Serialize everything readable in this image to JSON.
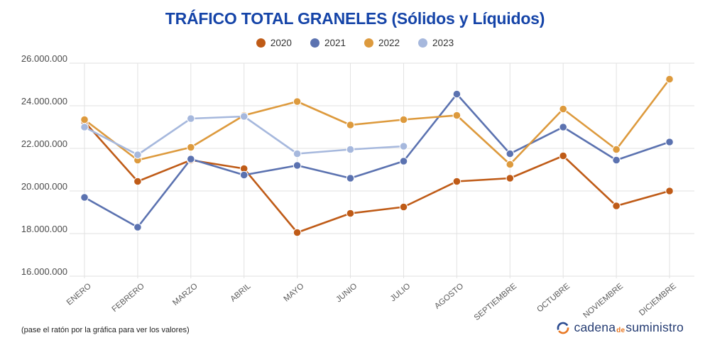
{
  "title": "TRÁFICO TOTAL GRANELES (Sólidos y Líquidos)",
  "footer": {
    "hint": "(pase el ratón por la gráfica para ver los valores)",
    "brand": {
      "cadena": "cadena",
      "de": "de",
      "suministro": "suministro"
    }
  },
  "colors": {
    "title": "#1544a8",
    "grid": "#e2e2e2",
    "axis_text": "#5c5c5c",
    "brand_navy": "#243b72",
    "brand_orange": "#e87722"
  },
  "chart_data": {
    "type": "line",
    "title": "TRÁFICO TOTAL GRANELES (Sólidos y Líquidos)",
    "xlabel": "",
    "ylabel": "",
    "grid": true,
    "legend_position": "top",
    "marker": "circle",
    "ylim": [
      16000000,
      26000000
    ],
    "yticks": [
      16000000,
      18000000,
      20000000,
      22000000,
      24000000,
      26000000
    ],
    "ytick_labels": [
      "16.000.000",
      "18.000.000",
      "20.000.000",
      "22.000.000",
      "24.000.000",
      "26.000.000"
    ],
    "categories": [
      "ENERO",
      "FEBRERO",
      "MARZO",
      "ABRIL",
      "MAYO",
      "JUNIO",
      "JULIO",
      "AGOSTO",
      "SEPTIEMBRE",
      "OCTUBRE",
      "NOVIEMBRE",
      "DICIEMBRE"
    ],
    "series": [
      {
        "name": "2020",
        "color": "#bf5b17",
        "values": [
          23250000,
          20450000,
          21450000,
          21050000,
          18050000,
          18950000,
          19250000,
          20450000,
          20600000,
          21650000,
          19300000,
          20000000
        ]
      },
      {
        "name": "2021",
        "color": "#5b72b0",
        "values": [
          19700000,
          18300000,
          21500000,
          20750000,
          21200000,
          20600000,
          21400000,
          24550000,
          21750000,
          23000000,
          21450000,
          22300000
        ]
      },
      {
        "name": "2022",
        "color": "#dd9a3d",
        "values": [
          23350000,
          21450000,
          22050000,
          23550000,
          24200000,
          23100000,
          23350000,
          23550000,
          21250000,
          23850000,
          21950000,
          25250000
        ]
      },
      {
        "name": "2023",
        "color": "#a6b8dd",
        "values": [
          23000000,
          21700000,
          23400000,
          23500000,
          21750000,
          21950000,
          22100000,
          null,
          null,
          null,
          null,
          null
        ]
      }
    ]
  }
}
